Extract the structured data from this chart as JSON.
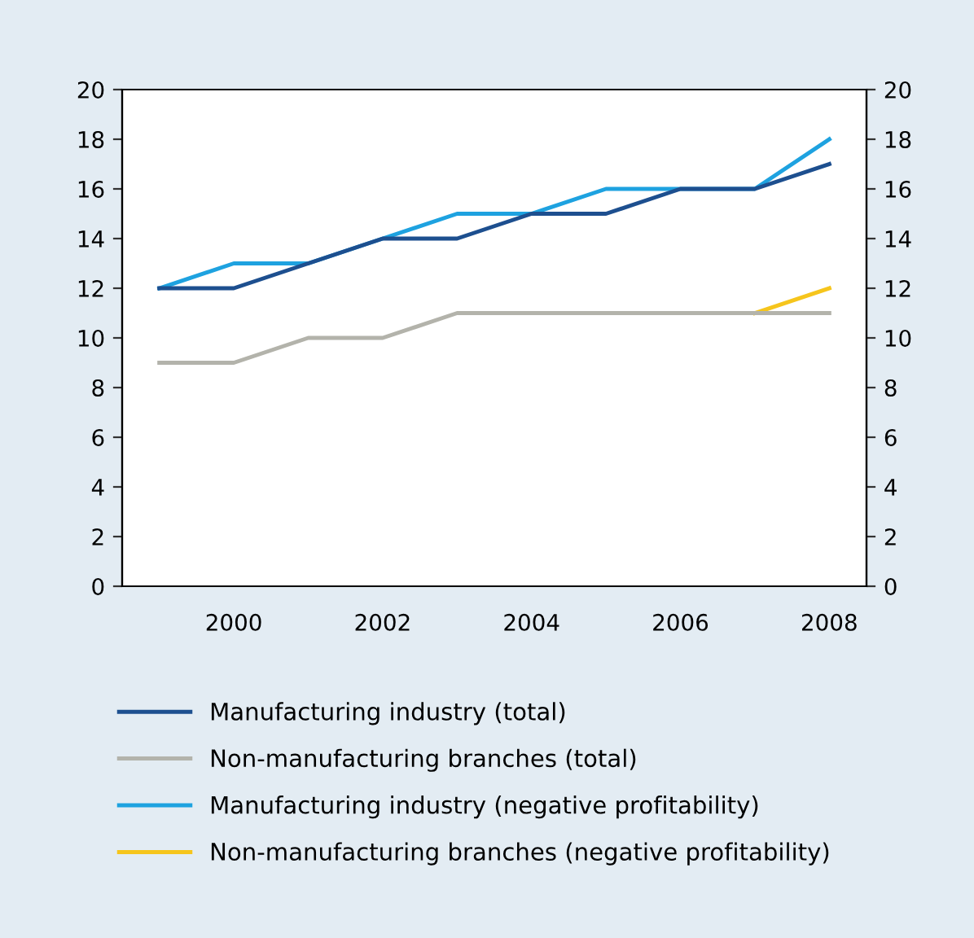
{
  "chart_data": {
    "type": "line",
    "categories": [
      null,
      "2000",
      null,
      "2002",
      null,
      "2004",
      null,
      "2006",
      null,
      "2008"
    ],
    "series": [
      {
        "name": "Manufacturing industry (total)",
        "color": "#1d4f8f",
        "values": [
          12,
          12,
          13,
          14,
          14,
          15,
          15,
          16,
          16,
          17
        ]
      },
      {
        "name": "Non-manufacturing branches (total)",
        "color": "#b3b3ab",
        "values": [
          9,
          9,
          10,
          10,
          11,
          11,
          11,
          11,
          11,
          11
        ]
      },
      {
        "name": "Manufacturing industry (negative profitability)",
        "color": "#1ea2e0",
        "values": [
          12,
          13,
          13,
          14,
          15,
          15,
          16,
          16,
          16,
          18
        ]
      },
      {
        "name": "Non-manufacturing branches (negative profitability)",
        "color": "#f6c51c",
        "values": [
          null,
          null,
          null,
          null,
          null,
          null,
          null,
          null,
          11,
          12
        ]
      }
    ],
    "ylim": [
      0,
      20
    ],
    "yticks": [
      0,
      2,
      4,
      6,
      8,
      10,
      12,
      14,
      16,
      18,
      20
    ],
    "y2lim": [
      0,
      20
    ],
    "y2ticks": [
      0,
      2,
      4,
      6,
      8,
      10,
      12,
      14,
      16,
      18,
      20
    ],
    "grid": false,
    "legend": "bottom",
    "marker": "none",
    "line_style": "solid"
  }
}
